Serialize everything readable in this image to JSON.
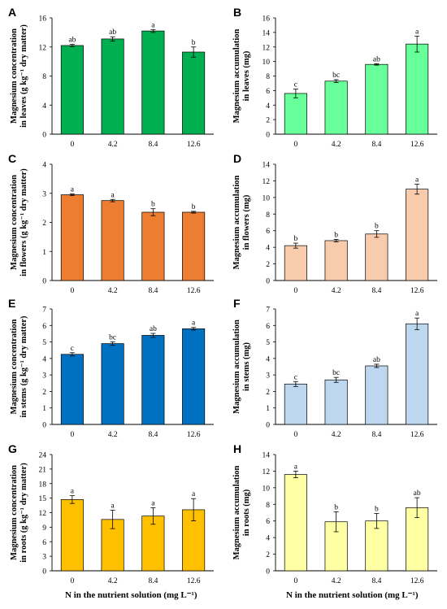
{
  "x_axis_title": "N in the nutrient solution (mg L⁻¹)",
  "chart_data": [
    {
      "panel": "A",
      "type": "bar",
      "ylabel": [
        "Magnesium concentration",
        "in leaves (g kg⁻¹ dry matter)"
      ],
      "categories": [
        "0",
        "4.2",
        "8.4",
        "12.6"
      ],
      "values": [
        12.2,
        13.1,
        14.2,
        11.3
      ],
      "errors": [
        0.15,
        0.3,
        0.2,
        0.7
      ],
      "letters": [
        "ab",
        "ab",
        "a",
        "b"
      ],
      "ylim": [
        0,
        16
      ],
      "yticks": [
        0,
        4,
        8,
        12,
        16
      ],
      "color": "#00b050"
    },
    {
      "panel": "B",
      "type": "bar",
      "ylabel": [
        "Magnesium accumulation",
        "in leaves (mg)"
      ],
      "categories": [
        "0",
        "4.2",
        "8.4",
        "12.6"
      ],
      "values": [
        5.6,
        7.3,
        9.6,
        12.4
      ],
      "errors": [
        0.6,
        0.2,
        0.1,
        1.1
      ],
      "letters": [
        "c",
        "bc",
        "ab",
        "a"
      ],
      "ylim": [
        0,
        16
      ],
      "yticks": [
        0,
        2,
        4,
        6,
        8,
        10,
        12,
        14,
        16
      ],
      "color": "#66ff99"
    },
    {
      "panel": "C",
      "type": "bar",
      "ylabel": [
        "Magnesium concentration",
        "in flowers (g kg⁻¹ dry matter)"
      ],
      "categories": [
        "0",
        "4.2",
        "8.4",
        "12.6"
      ],
      "values": [
        2.95,
        2.75,
        2.35,
        2.35
      ],
      "errors": [
        0.03,
        0.04,
        0.12,
        0.03
      ],
      "letters": [
        "a",
        "a",
        "b",
        "b"
      ],
      "ylim": [
        0,
        4
      ],
      "yticks": [
        0,
        1,
        2,
        3,
        4
      ],
      "color": "#ed7d31"
    },
    {
      "panel": "D",
      "type": "bar",
      "ylabel": [
        "Magnesium accumulation",
        "in flowers (mg)"
      ],
      "categories": [
        "0",
        "4.2",
        "8.4",
        "12.6"
      ],
      "values": [
        4.2,
        4.8,
        5.6,
        11.0
      ],
      "errors": [
        0.3,
        0.15,
        0.4,
        0.6
      ],
      "letters": [
        "b",
        "b",
        "b",
        "a"
      ],
      "ylim": [
        0,
        14
      ],
      "yticks": [
        0,
        2,
        4,
        6,
        8,
        10,
        12,
        14
      ],
      "color": "#f8cbad"
    },
    {
      "panel": "E",
      "type": "bar",
      "ylabel": [
        "Magnesium concentration",
        "in stems (g kg⁻¹ dry matter)"
      ],
      "categories": [
        "0",
        "4.2",
        "8.4",
        "12.6"
      ],
      "values": [
        4.25,
        4.9,
        5.4,
        5.8
      ],
      "errors": [
        0.1,
        0.1,
        0.12,
        0.08
      ],
      "letters": [
        "c",
        "bc",
        "ab",
        "a"
      ],
      "ylim": [
        0,
        7
      ],
      "yticks": [
        0,
        1,
        2,
        3,
        4,
        5,
        6,
        7
      ],
      "color": "#0070c0"
    },
    {
      "panel": "F",
      "type": "bar",
      "ylabel": [
        "Magnesium accumulation",
        "in stems (mg)"
      ],
      "categories": [
        "0",
        "4.2",
        "8.4",
        "12.6"
      ],
      "values": [
        2.45,
        2.7,
        3.55,
        6.1
      ],
      "errors": [
        0.15,
        0.15,
        0.1,
        0.35
      ],
      "letters": [
        "c",
        "bc",
        "ab",
        "a"
      ],
      "ylim": [
        0,
        7
      ],
      "yticks": [
        0,
        1,
        2,
        3,
        4,
        5,
        6,
        7
      ],
      "color": "#bdd7ee"
    },
    {
      "panel": "G",
      "type": "bar",
      "ylabel": [
        "Magnesium concentration",
        "in roots (g kg⁻¹ dry matter)"
      ],
      "categories": [
        "0",
        "4.2",
        "8.4",
        "12.6"
      ],
      "values": [
        14.7,
        10.6,
        11.3,
        12.6
      ],
      "errors": [
        0.8,
        1.9,
        1.7,
        2.3
      ],
      "letters": [
        "a",
        "a",
        "a",
        "a"
      ],
      "ylim": [
        0,
        24
      ],
      "yticks": [
        0,
        3,
        6,
        9,
        12,
        15,
        18,
        21,
        24
      ],
      "color": "#ffc000"
    },
    {
      "panel": "H",
      "type": "bar",
      "ylabel": [
        "Magnesium accumulation",
        "in roots (mg)"
      ],
      "categories": [
        "0",
        "4.2",
        "8.4",
        "12.6"
      ],
      "values": [
        11.6,
        5.9,
        6.0,
        7.6
      ],
      "errors": [
        0.4,
        1.2,
        0.9,
        1.2
      ],
      "letters": [
        "a",
        "b",
        "b",
        "ab"
      ],
      "ylim": [
        0,
        14
      ],
      "yticks": [
        0,
        2,
        4,
        6,
        8,
        10,
        12,
        14
      ],
      "color": "#ffffa3"
    }
  ]
}
